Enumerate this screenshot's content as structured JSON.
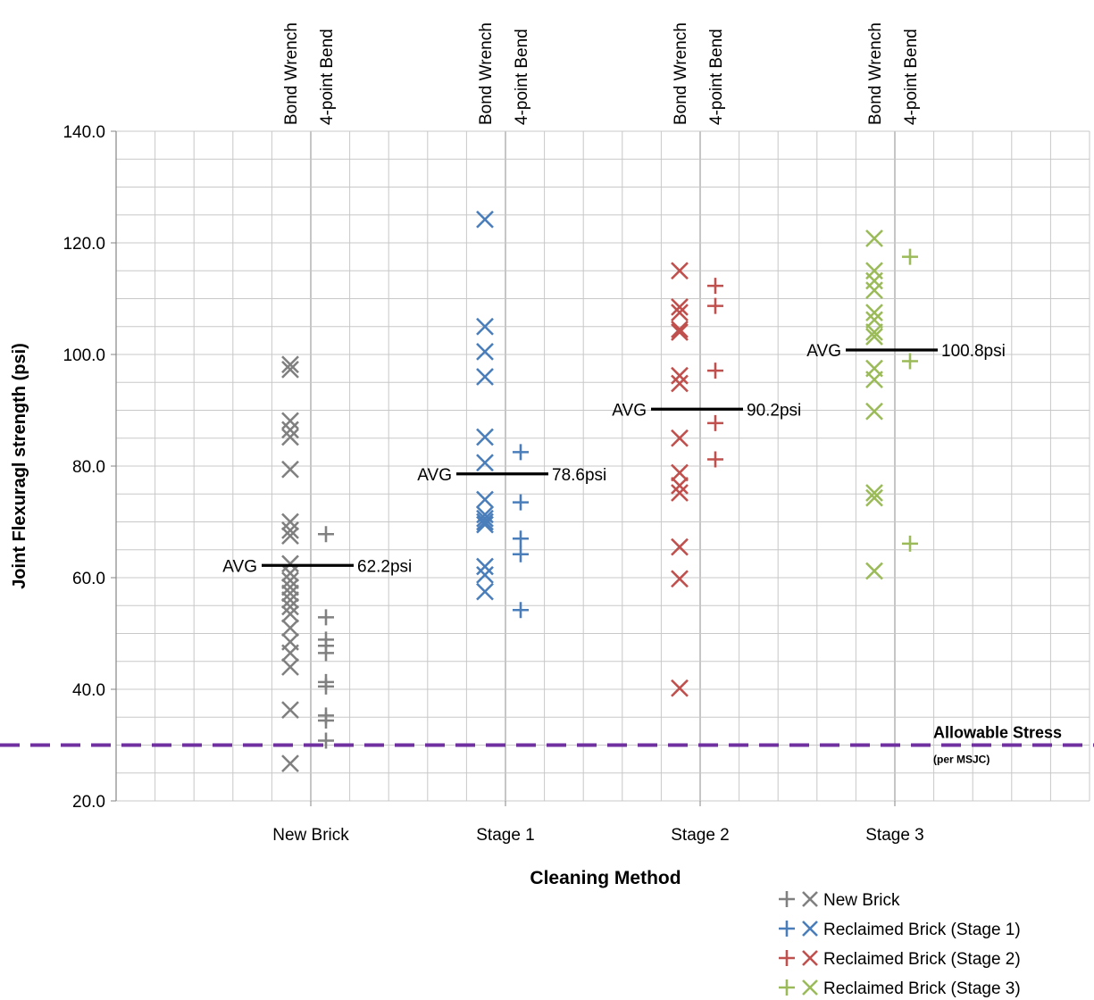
{
  "chart_data": {
    "type": "scatter",
    "title": "",
    "xlabel": "Cleaning Method",
    "ylabel": "Joint Flexuragl strength (psi)",
    "ylim": [
      20,
      140
    ],
    "y_ticks": [
      "20.0",
      "40.0",
      "60.0",
      "80.0",
      "100.0",
      "120.0",
      "140.0"
    ],
    "grid": true,
    "legend_position": "bottom-right",
    "groups": [
      {
        "name": "New Brick",
        "color": "#808080",
        "method_labels": [
          "Bond Wrench",
          "4-point Bend"
        ],
        "bond_wrench": [
          98.2,
          97.3,
          88.1,
          86.5,
          85.2,
          79.4,
          70.0,
          68.5,
          67.5,
          62.5,
          60.8,
          59.5,
          58.3,
          57.2,
          56.0,
          54.8,
          53.5,
          51.0,
          48.5,
          46.5,
          44.0,
          36.3,
          26.7
        ],
        "four_point_bend": [
          67.8,
          52.9,
          48.9,
          47.8,
          46.5,
          41.3,
          40.5,
          35.3,
          34.4,
          30.8
        ],
        "avg_value": 62.2,
        "avg_prefix": "AVG",
        "avg_label": "62.2psi"
      },
      {
        "name": "Reclaimed Brick (Stage 1)",
        "color": "#4a7ebb",
        "method_labels": [
          "Bond Wrench",
          "4-point Bend"
        ],
        "bond_wrench": [
          124.2,
          105.0,
          100.5,
          96.0,
          85.2,
          80.6,
          74.0,
          71.3,
          70.6,
          70.0,
          69.5,
          62.0,
          60.5,
          57.5
        ],
        "four_point_bend": [
          82.5,
          73.5,
          67.0,
          64.2,
          54.2
        ],
        "avg_value": 78.6,
        "avg_prefix": "AVG",
        "avg_label": "78.6psi"
      },
      {
        "name": "Reclaimed Brick (Stage 2)",
        "color": "#c0504d",
        "method_labels": [
          "Bond Wrench",
          "4-point Bend"
        ],
        "bond_wrench": [
          115.0,
          108.5,
          107.5,
          104.5,
          104.0,
          96.2,
          94.8,
          85.0,
          78.8,
          76.5,
          75.2,
          65.5,
          59.8,
          40.2
        ],
        "four_point_bend": [
          112.3,
          108.7,
          97.1,
          87.7,
          81.2
        ],
        "avg_value": 90.2,
        "avg_prefix": "AVG",
        "avg_label": "90.2psi"
      },
      {
        "name": "Reclaimed Brick (Stage 3)",
        "color": "#9bbb59",
        "method_labels": [
          "Bond Wrench",
          "4-point Bend"
        ],
        "bond_wrench": [
          120.8,
          115.0,
          113.2,
          111.5,
          107.5,
          106.2,
          104.0,
          103.2,
          97.5,
          95.5,
          89.8,
          75.2,
          74.3,
          61.2
        ],
        "four_point_bend": [
          117.5,
          98.8,
          66.1
        ],
        "avg_value": 100.8,
        "avg_prefix": "AVG",
        "avg_label": "100.8psi"
      }
    ],
    "x_categories": [
      "New Brick",
      "Stage 1",
      "Stage 2",
      "Stage 3"
    ],
    "reference_line": {
      "value": 30,
      "label": "Allowable Stress",
      "sublabel": "(per MSJC)",
      "color": "#7030a0"
    },
    "legend": [
      {
        "label": "New Brick",
        "color": "#808080"
      },
      {
        "label": "Reclaimed Brick (Stage 1)",
        "color": "#4a7ebb"
      },
      {
        "label": "Reclaimed Brick (Stage 2)",
        "color": "#c0504d"
      },
      {
        "label": "Reclaimed Brick (Stage 3)",
        "color": "#9bbb59"
      }
    ]
  }
}
